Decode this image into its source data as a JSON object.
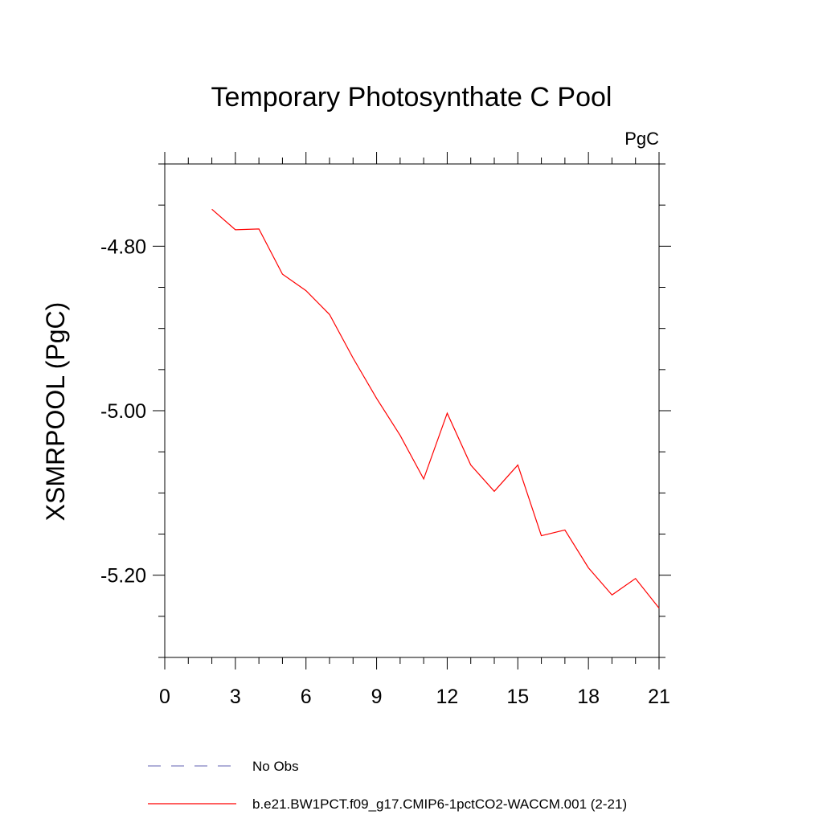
{
  "chart_data": {
    "type": "line",
    "title": "Temporary Photosynthate C Pool",
    "units": "PgC",
    "xlabel": "",
    "ylabel": "XSMRPOOL  (PgC)",
    "xlim": [
      0,
      21
    ],
    "ylim": [
      -5.3,
      -4.7
    ],
    "x_ticks": [
      0,
      3,
      6,
      9,
      12,
      15,
      18,
      21
    ],
    "x_tick_labels": [
      "0",
      "3",
      "6",
      "9",
      "12",
      "15",
      "18",
      "21"
    ],
    "x_minor_step": 1,
    "y_ticks": [
      -4.8,
      -5.0,
      -5.2
    ],
    "y_tick_labels": [
      "-4.80",
      "-5.00",
      "-5.20"
    ],
    "y_minor_step": 0.05,
    "grid": false,
    "legend_position": "bottom-left",
    "series": [
      {
        "name": "b.e21.BW1PCT.f09_g17.CMIP6-1pctCO2-WACCM.001 (2-21)",
        "color": "#ff0000",
        "dash": "solid",
        "x": [
          2,
          3,
          4,
          5,
          6,
          7,
          8,
          9,
          10,
          11,
          12,
          13,
          14,
          15,
          16,
          17,
          18,
          19,
          20,
          21
        ],
        "values": [
          -4.755,
          -4.78,
          -4.779,
          -4.834,
          -4.854,
          -4.883,
          -4.936,
          -4.985,
          -5.03,
          -5.083,
          -5.003,
          -5.066,
          -5.098,
          -5.066,
          -5.152,
          -5.145,
          -5.191,
          -5.224,
          -5.204,
          -5.24
        ]
      }
    ],
    "legend": [
      {
        "label": "No Obs",
        "color": "#8080c0",
        "dash": "dashed"
      },
      {
        "label": "b.e21.BW1PCT.f09_g17.CMIP6-1pctCO2-WACCM.001 (2-21)",
        "color": "#ff0000",
        "dash": "solid"
      }
    ]
  }
}
